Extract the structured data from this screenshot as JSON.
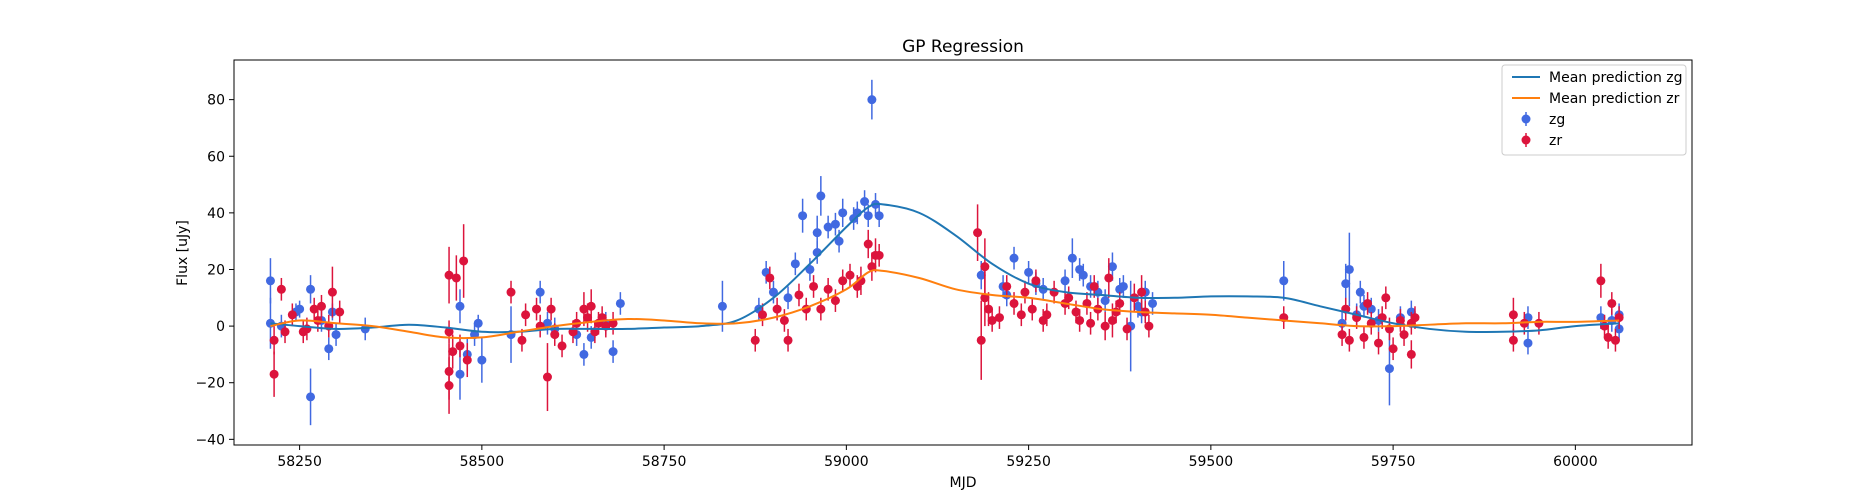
{
  "chart_data": {
    "type": "scatter",
    "title": "GP Regression",
    "xlabel": "MJD",
    "ylabel": "Flux [uJy]",
    "xlim": [
      58160,
      60160
    ],
    "ylim": [
      -42,
      94
    ],
    "xticks": [
      58250,
      58500,
      58750,
      59000,
      59250,
      59500,
      59750,
      60000
    ],
    "yticks": [
      -40,
      -20,
      0,
      20,
      40,
      60,
      80
    ],
    "grid": false,
    "legend": {
      "placement": "upper-right",
      "entries": [
        {
          "label": "Mean prediction zg",
          "kind": "line",
          "color": "#1f77b4"
        },
        {
          "label": "Mean prediction zr",
          "kind": "line",
          "color": "#ff7f0e"
        },
        {
          "label": "zg",
          "kind": "errorbar",
          "color": "#4169e1"
        },
        {
          "label": "zr",
          "kind": "errorbar",
          "color": "#dc143c"
        }
      ]
    },
    "lines": [
      {
        "name": "Mean prediction zg",
        "color": "#1f77b4",
        "x": [
          58210,
          58250,
          58300,
          58350,
          58400,
          58450,
          58500,
          58550,
          58600,
          58650,
          58700,
          58750,
          58800,
          58850,
          58900,
          58950,
          59000,
          59030,
          59050,
          59100,
          59150,
          59200,
          59250,
          59300,
          59350,
          59400,
          59450,
          59500,
          59550,
          59600,
          59650,
          59700,
          59750,
          59800,
          59850,
          59900,
          59950,
          60000,
          60060
        ],
        "y": [
          1,
          0,
          -1,
          -0.5,
          0.5,
          -0.5,
          -2,
          -2,
          -1,
          -1,
          -1,
          -0.5,
          0,
          2,
          10,
          22,
          35,
          42,
          43,
          40,
          32,
          22,
          15,
          12,
          11,
          10,
          10,
          10.5,
          10.5,
          10,
          7,
          4,
          1,
          -1,
          -2,
          -2,
          -1.5,
          0,
          1
        ]
      },
      {
        "name": "Mean prediction zr",
        "color": "#ff7f0e",
        "x": [
          58210,
          58250,
          58300,
          58350,
          58400,
          58450,
          58500,
          58550,
          58600,
          58650,
          58700,
          58750,
          58800,
          58850,
          58900,
          58950,
          59000,
          59030,
          59050,
          59100,
          59150,
          59200,
          59250,
          59300,
          59350,
          59400,
          59450,
          59500,
          59550,
          59600,
          59650,
          59700,
          59750,
          59800,
          59850,
          59900,
          59950,
          60000,
          60060
        ],
        "y": [
          0,
          2,
          1,
          0,
          -2,
          -4,
          -4,
          -2,
          0,
          1.5,
          2.5,
          2,
          1,
          1,
          3,
          7,
          13,
          19,
          19.5,
          17,
          13,
          11,
          10,
          8,
          6,
          5,
          4.5,
          4,
          3,
          2,
          1,
          0,
          0,
          0.5,
          1,
          1,
          1.5,
          1.5,
          2
        ]
      }
    ],
    "series": [
      {
        "name": "zg",
        "color": "#4169e1",
        "points": [
          [
            58210,
            16,
            8
          ],
          [
            58210,
            1,
            9
          ],
          [
            58225,
            0,
            4
          ],
          [
            58245,
            5,
            3
          ],
          [
            58250,
            6,
            3
          ],
          [
            58265,
            13,
            5
          ],
          [
            58265,
            -25,
            10
          ],
          [
            58280,
            2,
            4
          ],
          [
            58290,
            -8,
            4
          ],
          [
            58295,
            5,
            3
          ],
          [
            58300,
            -3,
            4
          ],
          [
            58340,
            -1,
            4
          ],
          [
            58470,
            7,
            6
          ],
          [
            58470,
            -17,
            9
          ],
          [
            58480,
            -10,
            6
          ],
          [
            58490,
            -3,
            4
          ],
          [
            58495,
            1,
            3
          ],
          [
            58500,
            -12,
            8
          ],
          [
            58540,
            -3,
            10
          ],
          [
            58580,
            12,
            4
          ],
          [
            58590,
            1,
            4
          ],
          [
            58600,
            -1,
            4
          ],
          [
            58630,
            -3,
            4
          ],
          [
            58640,
            -10,
            4
          ],
          [
            58650,
            -4,
            4
          ],
          [
            58670,
            1,
            4
          ],
          [
            58680,
            -9,
            4
          ],
          [
            58690,
            8,
            4
          ],
          [
            58830,
            7,
            9
          ],
          [
            58880,
            6,
            4
          ],
          [
            58890,
            19,
            4
          ],
          [
            58900,
            12,
            4
          ],
          [
            58920,
            10,
            4
          ],
          [
            58930,
            22,
            4
          ],
          [
            58940,
            39,
            6
          ],
          [
            58950,
            20,
            4
          ],
          [
            58960,
            26,
            4
          ],
          [
            58960,
            33,
            6
          ],
          [
            58965,
            46,
            7
          ],
          [
            58975,
            35,
            4
          ],
          [
            58985,
            36,
            4
          ],
          [
            58990,
            30,
            4
          ],
          [
            58995,
            40,
            5
          ],
          [
            59010,
            38,
            4
          ],
          [
            59015,
            40,
            4
          ],
          [
            59025,
            44,
            4
          ],
          [
            59030,
            39,
            4
          ],
          [
            59035,
            80,
            7
          ],
          [
            59040,
            43,
            4
          ],
          [
            59045,
            39,
            4
          ],
          [
            59185,
            18,
            5
          ],
          [
            59215,
            14,
            4
          ],
          [
            59220,
            11,
            4
          ],
          [
            59230,
            24,
            4
          ],
          [
            59250,
            19,
            4
          ],
          [
            59260,
            15,
            4
          ],
          [
            59270,
            13,
            4
          ],
          [
            59300,
            16,
            4
          ],
          [
            59310,
            24,
            7
          ],
          [
            59320,
            20,
            4
          ],
          [
            59325,
            18,
            4
          ],
          [
            59335,
            14,
            4
          ],
          [
            59345,
            12,
            4
          ],
          [
            59355,
            9,
            4
          ],
          [
            59365,
            21,
            5
          ],
          [
            59375,
            13,
            4
          ],
          [
            59380,
            14,
            4
          ],
          [
            59390,
            0,
            16
          ],
          [
            59400,
            7,
            4
          ],
          [
            59405,
            5,
            4
          ],
          [
            59410,
            12,
            4
          ],
          [
            59420,
            8,
            4
          ],
          [
            59600,
            16,
            7
          ],
          [
            59680,
            1,
            4
          ],
          [
            59685,
            15,
            7
          ],
          [
            59690,
            20,
            13
          ],
          [
            59700,
            4,
            4
          ],
          [
            59705,
            12,
            4
          ],
          [
            59710,
            7,
            4
          ],
          [
            59720,
            6,
            4
          ],
          [
            59730,
            2,
            4
          ],
          [
            59745,
            -15,
            13
          ],
          [
            59760,
            3,
            4
          ],
          [
            59775,
            5,
            4
          ],
          [
            59935,
            3,
            4
          ],
          [
            59935,
            -6,
            4
          ],
          [
            60035,
            3,
            4
          ],
          [
            60050,
            2,
            4
          ],
          [
            60060,
            4,
            4
          ],
          [
            60060,
            -1,
            4
          ]
        ]
      },
      {
        "name": "zr",
        "color": "#dc143c",
        "points": [
          [
            58215,
            -17,
            8
          ],
          [
            58215,
            -5,
            5
          ],
          [
            58225,
            13,
            4
          ],
          [
            58230,
            -2,
            4
          ],
          [
            58240,
            4,
            4
          ],
          [
            58255,
            -2,
            4
          ],
          [
            58260,
            -1,
            4
          ],
          [
            58270,
            6,
            4
          ],
          [
            58275,
            2,
            4
          ],
          [
            58280,
            7,
            4
          ],
          [
            58290,
            0,
            4
          ],
          [
            58295,
            12,
            9
          ],
          [
            58305,
            5,
            4
          ],
          [
            58455,
            18,
            10
          ],
          [
            58455,
            -2,
            4
          ],
          [
            58455,
            -16,
            10
          ],
          [
            58455,
            -21,
            10
          ],
          [
            58460,
            -9,
            6
          ],
          [
            58465,
            17,
            8
          ],
          [
            58470,
            -7,
            4
          ],
          [
            58475,
            23,
            13
          ],
          [
            58480,
            -12,
            6
          ],
          [
            58540,
            12,
            4
          ],
          [
            58555,
            -5,
            4
          ],
          [
            58560,
            4,
            4
          ],
          [
            58575,
            6,
            4
          ],
          [
            58580,
            0,
            4
          ],
          [
            58590,
            -18,
            12
          ],
          [
            58595,
            6,
            4
          ],
          [
            58600,
            -3,
            4
          ],
          [
            58610,
            -7,
            4
          ],
          [
            58625,
            -2,
            4
          ],
          [
            58630,
            1,
            4
          ],
          [
            58640,
            6,
            6
          ],
          [
            58645,
            3,
            5
          ],
          [
            58650,
            7,
            6
          ],
          [
            58655,
            -2,
            4
          ],
          [
            58660,
            1,
            4
          ],
          [
            58665,
            3,
            4
          ],
          [
            58670,
            0,
            4
          ],
          [
            58680,
            1,
            4
          ],
          [
            58875,
            -5,
            4
          ],
          [
            58885,
            4,
            4
          ],
          [
            58895,
            17,
            4
          ],
          [
            58905,
            6,
            4
          ],
          [
            58915,
            2,
            4
          ],
          [
            58920,
            -5,
            4
          ],
          [
            58935,
            11,
            4
          ],
          [
            58945,
            6,
            4
          ],
          [
            58955,
            14,
            4
          ],
          [
            58965,
            6,
            4
          ],
          [
            58975,
            13,
            4
          ],
          [
            58985,
            9,
            4
          ],
          [
            58995,
            16,
            4
          ],
          [
            59005,
            18,
            4
          ],
          [
            59015,
            14,
            4
          ],
          [
            59020,
            16,
            5
          ],
          [
            59030,
            29,
            5
          ],
          [
            59035,
            21,
            5
          ],
          [
            59040,
            25,
            6
          ],
          [
            59045,
            25,
            4
          ],
          [
            59180,
            33,
            10
          ],
          [
            59185,
            -5,
            14
          ],
          [
            59190,
            21,
            10
          ],
          [
            59190,
            10,
            10
          ],
          [
            59195,
            6,
            6
          ],
          [
            59200,
            2,
            4
          ],
          [
            59210,
            3,
            4
          ],
          [
            59220,
            14,
            4
          ],
          [
            59230,
            8,
            4
          ],
          [
            59240,
            4,
            4
          ],
          [
            59245,
            12,
            4
          ],
          [
            59255,
            6,
            4
          ],
          [
            59260,
            16,
            4
          ],
          [
            59270,
            2,
            4
          ],
          [
            59275,
            4,
            4
          ],
          [
            59285,
            12,
            4
          ],
          [
            59300,
            8,
            4
          ],
          [
            59305,
            10,
            4
          ],
          [
            59315,
            5,
            4
          ],
          [
            59320,
            2,
            4
          ],
          [
            59330,
            8,
            4
          ],
          [
            59335,
            1,
            4
          ],
          [
            59340,
            14,
            4
          ],
          [
            59345,
            6,
            4
          ],
          [
            59355,
            0,
            5
          ],
          [
            59360,
            17,
            7
          ],
          [
            59365,
            2,
            6
          ],
          [
            59370,
            5,
            4
          ],
          [
            59375,
            8,
            4
          ],
          [
            59385,
            -1,
            4
          ],
          [
            59395,
            10,
            5
          ],
          [
            59405,
            12,
            6
          ],
          [
            59410,
            5,
            4
          ],
          [
            59415,
            0,
            4
          ],
          [
            59600,
            3,
            4
          ],
          [
            59680,
            -3,
            4
          ],
          [
            59685,
            6,
            4
          ],
          [
            59690,
            -5,
            4
          ],
          [
            59700,
            3,
            4
          ],
          [
            59710,
            -4,
            4
          ],
          [
            59715,
            8,
            4
          ],
          [
            59720,
            1,
            4
          ],
          [
            59730,
            -6,
            4
          ],
          [
            59735,
            3,
            4
          ],
          [
            59740,
            10,
            4
          ],
          [
            59745,
            -1,
            4
          ],
          [
            59750,
            -8,
            4
          ],
          [
            59760,
            2,
            4
          ],
          [
            59765,
            -3,
            4
          ],
          [
            59775,
            1,
            4
          ],
          [
            59775,
            -10,
            5
          ],
          [
            59780,
            3,
            4
          ],
          [
            59915,
            4,
            6
          ],
          [
            59915,
            -5,
            4
          ],
          [
            59930,
            1,
            4
          ],
          [
            59950,
            1,
            4
          ],
          [
            60035,
            16,
            6
          ],
          [
            60040,
            0,
            4
          ],
          [
            60045,
            -4,
            4
          ],
          [
            60050,
            8,
            4
          ],
          [
            60055,
            -5,
            4
          ],
          [
            60060,
            3,
            4
          ]
        ]
      }
    ]
  }
}
